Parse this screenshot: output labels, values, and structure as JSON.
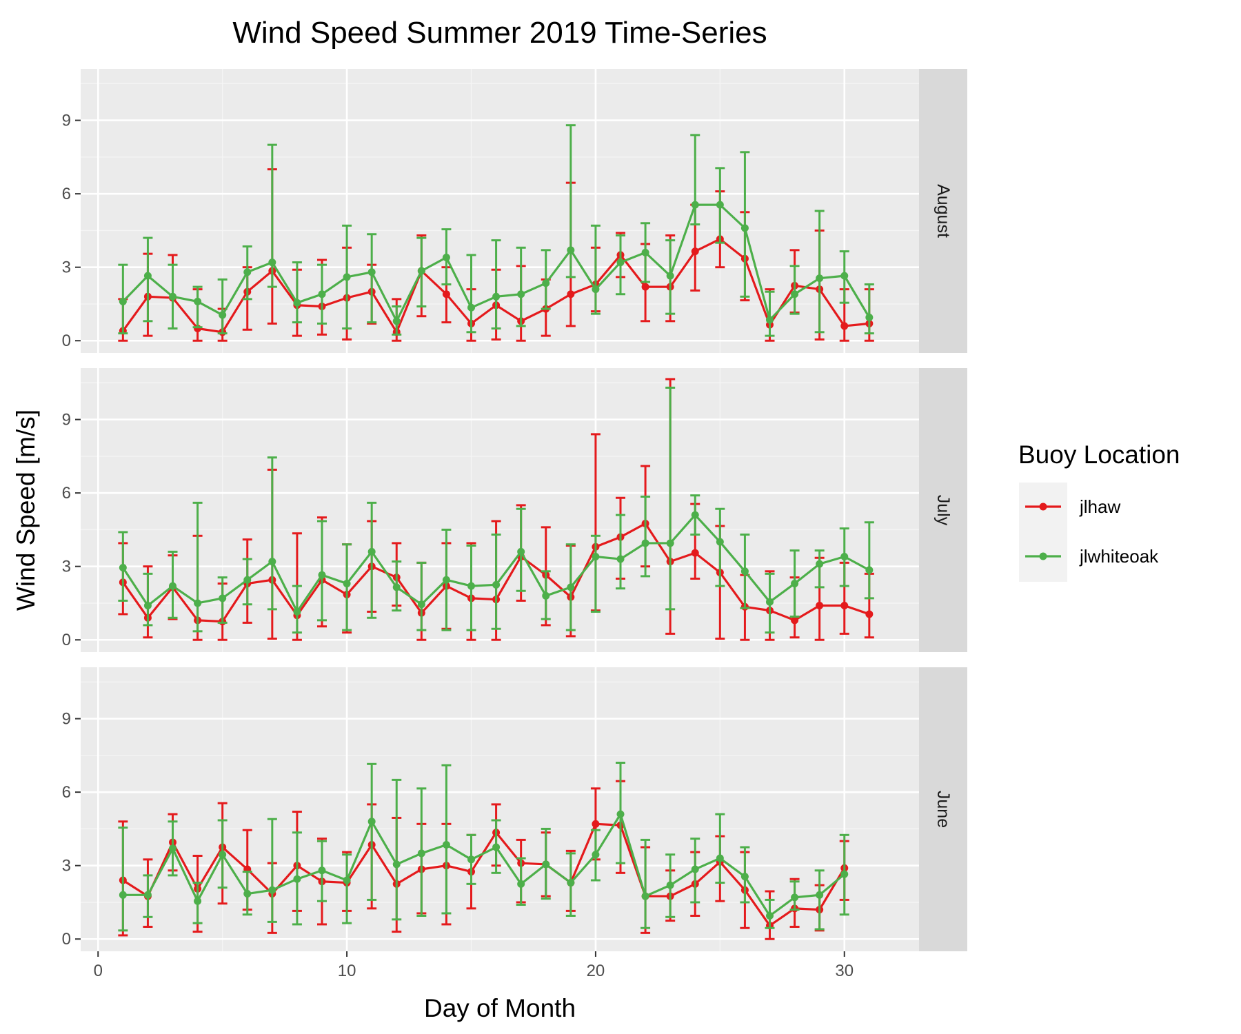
{
  "chart_data": {
    "type": "line",
    "title": "Wind Speed Summer 2019 Time-Series",
    "xlabel": "Day of Month",
    "ylabel": "Wind Speed [m/s]",
    "xlim": [
      -0.7,
      33
    ],
    "ylim": [
      -0.5,
      11.1
    ],
    "x_ticks": [
      0,
      10,
      20,
      30
    ],
    "y_ticks": [
      0,
      3,
      6,
      9
    ],
    "grid": true,
    "error_bars": true,
    "legend": {
      "title": "Buoy Location",
      "position": "right",
      "entries": [
        "jlhaw",
        "jlwhiteoak"
      ]
    },
    "colors": {
      "jlhaw": "#e41a1c",
      "jlwhiteoak": "#4daf4a"
    },
    "panels": [
      {
        "facet": "August",
        "series": [
          {
            "name": "jlhaw",
            "x": [
              1,
              2,
              3,
              4,
              5,
              6,
              7,
              8,
              9,
              10,
              11,
              12,
              13,
              14,
              15,
              16,
              17,
              18,
              19,
              20,
              21,
              22,
              23,
              24,
              25,
              26,
              27,
              28,
              29,
              30,
              31
            ],
            "y": [
              0.4,
              1.8,
              1.75,
              0.5,
              0.35,
              2.0,
              2.85,
              1.45,
              1.4,
              1.75,
              2.0,
              0.35,
              2.85,
              1.9,
              0.7,
              1.45,
              0.8,
              1.3,
              1.9,
              2.3,
              3.5,
              2.2,
              2.2,
              3.65,
              4.15,
              3.35,
              0.65,
              2.25,
              2.1,
              0.6,
              0.7
            ],
            "lower": [
              0.0,
              0.2,
              0.5,
              0.0,
              0.0,
              0.45,
              0.7,
              0.2,
              0.25,
              0.05,
              0.7,
              0.0,
              1.0,
              0.75,
              0.0,
              0.05,
              0.0,
              0.2,
              0.6,
              1.2,
              2.6,
              0.8,
              0.8,
              2.05,
              3.0,
              1.65,
              0.0,
              1.15,
              0.05,
              0.0,
              0.0
            ],
            "upper": [
              1.7,
              3.55,
              3.5,
              2.1,
              1.3,
              3.0,
              7.0,
              2.9,
              3.3,
              3.8,
              3.1,
              1.7,
              4.3,
              3.0,
              2.1,
              2.9,
              3.05,
              2.5,
              6.45,
              3.8,
              4.4,
              3.95,
              4.3,
              5.55,
              6.1,
              5.25,
              2.1,
              3.7,
              4.5,
              2.1,
              2.1
            ]
          },
          {
            "name": "jlwhiteoak",
            "x": [
              1,
              2,
              3,
              4,
              5,
              6,
              7,
              8,
              9,
              10,
              11,
              12,
              13,
              14,
              15,
              16,
              17,
              18,
              19,
              20,
              21,
              22,
              23,
              24,
              25,
              26,
              27,
              28,
              29,
              30,
              31
            ],
            "y": [
              1.6,
              2.65,
              1.8,
              1.6,
              1.05,
              2.8,
              3.2,
              1.55,
              1.9,
              2.6,
              2.8,
              0.8,
              2.85,
              3.4,
              1.35,
              1.8,
              1.9,
              2.35,
              3.7,
              2.1,
              3.2,
              3.6,
              2.65,
              5.55,
              5.55,
              4.6,
              0.85,
              1.9,
              2.55,
              2.65,
              0.95
            ],
            "lower": [
              0.3,
              0.8,
              0.5,
              0.55,
              0.3,
              1.7,
              2.2,
              0.75,
              0.7,
              0.5,
              0.75,
              0.25,
              1.4,
              2.3,
              0.35,
              0.5,
              0.6,
              1.3,
              2.6,
              1.1,
              1.9,
              2.4,
              1.1,
              4.75,
              4.0,
              1.8,
              0.2,
              1.1,
              0.35,
              1.55,
              0.3
            ],
            "upper": [
              3.1,
              4.2,
              3.1,
              2.2,
              2.5,
              3.85,
              8.0,
              3.2,
              3.1,
              4.7,
              4.35,
              1.4,
              4.2,
              4.55,
              3.5,
              4.1,
              3.8,
              3.7,
              8.8,
              4.7,
              4.3,
              4.8,
              4.1,
              8.4,
              7.05,
              7.7,
              2.0,
              3.05,
              5.3,
              3.65,
              2.3
            ]
          }
        ]
      },
      {
        "facet": "July",
        "series": [
          {
            "name": "jlhaw",
            "x": [
              1,
              2,
              3,
              4,
              5,
              6,
              7,
              8,
              9,
              10,
              11,
              12,
              13,
              14,
              15,
              16,
              17,
              18,
              19,
              20,
              21,
              22,
              23,
              24,
              25,
              26,
              27,
              28,
              29,
              30,
              31
            ],
            "y": [
              2.35,
              0.9,
              2.15,
              0.8,
              0.75,
              2.3,
              2.45,
              1.0,
              2.45,
              1.85,
              3.0,
              2.55,
              1.1,
              2.2,
              1.7,
              1.65,
              3.4,
              2.65,
              1.75,
              3.8,
              4.2,
              4.75,
              3.2,
              3.55,
              2.75,
              1.35,
              1.2,
              0.8,
              1.4,
              1.4,
              1.05
            ],
            "lower": [
              1.05,
              0.1,
              0.85,
              0.0,
              0.0,
              0.7,
              0.05,
              0.0,
              0.55,
              0.3,
              1.15,
              1.4,
              0.0,
              0.45,
              0.0,
              0.0,
              1.6,
              0.6,
              0.15,
              1.2,
              2.5,
              3.0,
              0.25,
              2.5,
              0.05,
              0.0,
              0.0,
              0.1,
              0.0,
              0.25,
              0.1
            ],
            "upper": [
              3.95,
              3.0,
              3.45,
              4.25,
              2.3,
              4.1,
              6.95,
              4.35,
              5.0,
              3.9,
              4.85,
              3.95,
              3.15,
              3.95,
              3.95,
              4.85,
              5.5,
              4.6,
              3.85,
              8.4,
              5.8,
              7.1,
              10.65,
              5.55,
              4.65,
              2.65,
              2.8,
              2.55,
              3.35,
              3.15,
              2.7
            ]
          },
          {
            "name": "jlwhiteoak",
            "x": [
              1,
              2,
              3,
              4,
              5,
              6,
              7,
              8,
              9,
              10,
              11,
              12,
              13,
              14,
              15,
              16,
              17,
              18,
              19,
              20,
              21,
              22,
              23,
              24,
              25,
              26,
              27,
              28,
              29,
              30,
              31
            ],
            "y": [
              2.95,
              1.4,
              2.2,
              1.5,
              1.7,
              2.45,
              3.2,
              1.15,
              2.65,
              2.3,
              3.6,
              2.15,
              1.45,
              2.45,
              2.2,
              2.25,
              3.6,
              1.8,
              2.15,
              3.4,
              3.3,
              3.95,
              3.95,
              5.1,
              4.0,
              2.8,
              1.55,
              2.3,
              3.1,
              3.4,
              2.85
            ],
            "lower": [
              1.6,
              0.6,
              0.9,
              0.35,
              0.7,
              1.45,
              1.25,
              0.3,
              0.8,
              0.4,
              0.9,
              1.2,
              0.4,
              0.4,
              0.4,
              0.45,
              2.0,
              0.85,
              0.4,
              1.15,
              2.1,
              2.6,
              1.25,
              4.3,
              2.2,
              1.3,
              0.3,
              0.95,
              2.15,
              2.2,
              1.7
            ],
            "upper": [
              4.4,
              2.7,
              3.6,
              5.6,
              2.55,
              3.3,
              7.45,
              2.2,
              4.85,
              3.9,
              5.6,
              3.2,
              3.15,
              4.5,
              3.85,
              4.3,
              5.35,
              2.8,
              3.9,
              4.25,
              5.1,
              5.85,
              10.3,
              5.9,
              5.35,
              4.3,
              2.7,
              3.65,
              3.65,
              4.55,
              4.8
            ]
          }
        ]
      },
      {
        "facet": "June",
        "series": [
          {
            "name": "jlhaw",
            "x": [
              1,
              2,
              3,
              4,
              5,
              6,
              7,
              8,
              9,
              10,
              11,
              12,
              13,
              14,
              15,
              16,
              17,
              18,
              19,
              20,
              21,
              22,
              23,
              24,
              25,
              26,
              27,
              28,
              29,
              30
            ],
            "y": [
              2.4,
              1.75,
              3.95,
              2.05,
              3.75,
              2.85,
              1.85,
              3.0,
              2.35,
              2.3,
              3.85,
              2.25,
              2.85,
              3.0,
              2.75,
              4.35,
              3.1,
              3.05,
              2.3,
              4.7,
              4.65,
              1.75,
              1.75,
              2.25,
              3.15,
              2.0,
              0.55,
              1.25,
              1.2,
              2.9
            ],
            "lower": [
              0.15,
              0.5,
              2.8,
              0.3,
              1.45,
              1.2,
              0.25,
              1.15,
              0.6,
              1.15,
              1.25,
              0.3,
              1.05,
              0.6,
              1.25,
              3.0,
              1.5,
              1.75,
              1.15,
              3.25,
              2.7,
              0.25,
              0.75,
              0.95,
              1.55,
              0.45,
              0.0,
              0.5,
              0.35,
              1.6
            ],
            "upper": [
              4.8,
              3.25,
              5.1,
              3.4,
              5.55,
              4.45,
              3.1,
              5.2,
              4.1,
              3.55,
              5.5,
              4.95,
              4.7,
              4.7,
              4.25,
              5.5,
              4.05,
              4.35,
              3.6,
              6.15,
              6.45,
              3.75,
              2.8,
              3.55,
              4.2,
              3.55,
              1.95,
              2.45,
              2.2,
              4.0
            ]
          },
          {
            "name": "jlwhiteoak",
            "x": [
              1,
              2,
              3,
              4,
              5,
              6,
              7,
              8,
              9,
              10,
              11,
              12,
              13,
              14,
              15,
              16,
              17,
              18,
              19,
              20,
              21,
              22,
              23,
              24,
              25,
              26,
              27,
              28,
              29,
              30
            ],
            "y": [
              1.8,
              1.8,
              3.7,
              1.55,
              3.45,
              1.85,
              2.0,
              2.45,
              2.8,
              2.4,
              4.8,
              3.05,
              3.5,
              3.85,
              3.25,
              3.75,
              2.25,
              3.05,
              2.3,
              3.45,
              5.1,
              1.75,
              2.2,
              2.85,
              3.3,
              2.55,
              0.95,
              1.7,
              1.8,
              2.65
            ],
            "lower": [
              0.35,
              0.9,
              2.6,
              0.65,
              2.1,
              1.0,
              0.7,
              0.6,
              1.55,
              0.65,
              1.6,
              0.8,
              0.95,
              1.05,
              2.25,
              2.7,
              1.4,
              1.65,
              0.95,
              2.4,
              3.1,
              0.45,
              0.9,
              1.5,
              2.3,
              1.5,
              0.45,
              1.2,
              0.4,
              1.0
            ],
            "upper": [
              4.55,
              2.6,
              4.8,
              2.3,
              4.85,
              2.75,
              4.9,
              4.35,
              4.0,
              3.45,
              7.15,
              6.5,
              6.15,
              7.1,
              4.25,
              4.85,
              3.3,
              4.5,
              3.5,
              4.45,
              7.2,
              4.05,
              3.45,
              4.1,
              5.1,
              3.75,
              1.6,
              2.35,
              2.8,
              4.25
            ]
          }
        ]
      }
    ]
  }
}
